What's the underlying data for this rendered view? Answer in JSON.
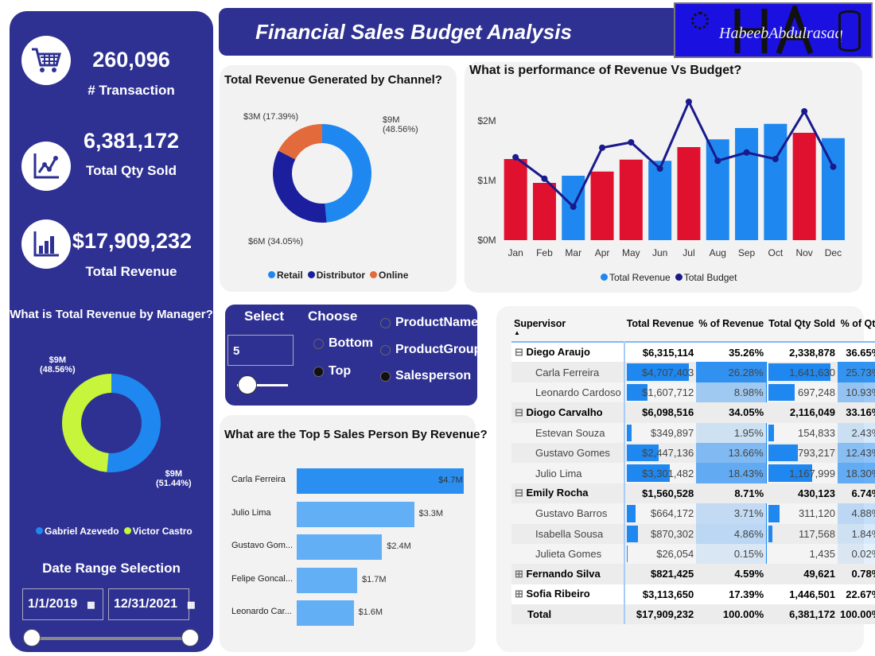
{
  "header": {
    "title": "Financial Sales Budget Analysis",
    "logo_text": "HabeebAbdulrasaq",
    "logo_initials": "HA"
  },
  "sidebar": {
    "kpis": [
      {
        "value": "260,096",
        "label": "# Transaction",
        "icon": "shopping-cart-icon"
      },
      {
        "value": "6,381,172",
        "label": "Total Qty Sold",
        "icon": "line-chart-icon"
      },
      {
        "value": "$17,909,232",
        "label": "Total Revenue",
        "icon": "bar-chart-icon"
      }
    ],
    "manager_chart": {
      "title": "What is Total Revenue by Manager?",
      "slices": [
        {
          "name": "Victor Castro",
          "value": 51.44,
          "label": "$9M",
          "pct": "(51.44%)",
          "color": "#1e88f0"
        },
        {
          "name": "Gabriel Azevedo",
          "value": 48.56,
          "label": "$9M",
          "pct": "(48.56%)",
          "color": "#c6f53b"
        }
      ]
    },
    "date_range": {
      "title": "Date Range Selection",
      "start": "1/1/2019",
      "end": "12/31/2021"
    }
  },
  "channel_chart": {
    "title": "Total Revenue Generated by Channel?",
    "slices": [
      {
        "name": "Retail",
        "value": 48.56,
        "label": "$9M",
        "pct": "(48.56%)",
        "color": "#1e88f0"
      },
      {
        "name": "Distributor",
        "value": 34.05,
        "label": "$6M (34.05%)",
        "color": "#1b1f9e"
      },
      {
        "name": "Online",
        "value": 17.39,
        "label": "$3M (17.39%)",
        "color": "#e26a3b"
      }
    ]
  },
  "chart_data": {
    "type": "bar",
    "title": "What is performance of Revenue Vs Budget?",
    "categories": [
      "Jan",
      "Feb",
      "Mar",
      "Apr",
      "May",
      "Jun",
      "Jul",
      "Aug",
      "Sep",
      "Oct",
      "Nov",
      "Dec"
    ],
    "yticks": [
      "$0M",
      "$1M",
      "$2M"
    ],
    "ylim": [
      0,
      2.4
    ],
    "series": [
      {
        "name": "Total Revenue",
        "type": "bar",
        "values": [
          1.36,
          0.96,
          1.08,
          1.15,
          1.35,
          1.33,
          1.56,
          1.69,
          1.88,
          1.95,
          1.8,
          1.71
        ],
        "color": "#1e88f0",
        "below_budget_color": "#e0102f"
      },
      {
        "name": "Total Budget",
        "type": "line",
        "values": [
          1.39,
          1.03,
          0.56,
          1.55,
          1.64,
          1.2,
          2.32,
          1.33,
          1.47,
          1.36,
          2.16,
          1.23
        ],
        "color": "#1a1a8c"
      }
    ],
    "legend": "bottom"
  },
  "filter": {
    "select_label": "Select",
    "select_value": "5",
    "choose_label": "Choose",
    "choose_options": [
      {
        "label": "Bottom",
        "selected": false
      },
      {
        "label": "Top",
        "selected": true
      }
    ],
    "field_options": [
      {
        "label": "ProductName",
        "selected": false
      },
      {
        "label": "ProductGroup",
        "selected": false
      },
      {
        "label": "Salesperson",
        "selected": true
      }
    ]
  },
  "top5": {
    "title": "What are the Top 5 Sales Person By Revenue?",
    "bars": [
      {
        "name": "Carla Ferreira",
        "value": 4.7,
        "label": "$4.7M"
      },
      {
        "name": "Julio Lima",
        "value": 3.3,
        "label": "$3.3M"
      },
      {
        "name": "Gustavo Gom...",
        "value": 2.4,
        "label": "$2.4M"
      },
      {
        "name": "Felipe Goncal...",
        "value": 1.7,
        "label": "$1.7M"
      },
      {
        "name": "Leonardo Car...",
        "value": 1.6,
        "label": "$1.6M"
      }
    ]
  },
  "table": {
    "headers": [
      "Supervisor",
      "Total Revenue",
      "% of Revenue",
      "Total Qty Sold",
      "% of Qty"
    ],
    "rows": [
      {
        "level": 0,
        "expand": "minus",
        "cells": [
          "Diego Araujo",
          "$6,315,114",
          "35.26%",
          "2,338,878",
          "36.65%"
        ]
      },
      {
        "level": 1,
        "cells": [
          "Carla Ferreira",
          "$4,707,403",
          "26.28%",
          "1,641,630",
          "25.73%"
        ]
      },
      {
        "level": 1,
        "cells": [
          "Leonardo Cardoso",
          "$1,607,712",
          "8.98%",
          "697,248",
          "10.93%"
        ]
      },
      {
        "level": 0,
        "expand": "minus",
        "cells": [
          "Diogo Carvalho",
          "$6,098,516",
          "34.05%",
          "2,116,049",
          "33.16%"
        ]
      },
      {
        "level": 1,
        "cells": [
          "Estevan Souza",
          "$349,897",
          "1.95%",
          "154,833",
          "2.43%"
        ]
      },
      {
        "level": 1,
        "cells": [
          "Gustavo Gomes",
          "$2,447,136",
          "13.66%",
          "793,217",
          "12.43%"
        ]
      },
      {
        "level": 1,
        "cells": [
          "Julio Lima",
          "$3,301,482",
          "18.43%",
          "1,167,999",
          "18.30%"
        ]
      },
      {
        "level": 0,
        "expand": "minus",
        "cells": [
          "Emily Rocha",
          "$1,560,528",
          "8.71%",
          "430,123",
          "6.74%"
        ]
      },
      {
        "level": 1,
        "cells": [
          "Gustavo Barros",
          "$664,172",
          "3.71%",
          "311,120",
          "4.88%"
        ]
      },
      {
        "level": 1,
        "cells": [
          "Isabella Sousa",
          "$870,302",
          "4.86%",
          "117,568",
          "1.84%"
        ]
      },
      {
        "level": 1,
        "cells": [
          "Julieta Gomes",
          "$26,054",
          "0.15%",
          "1,435",
          "0.02%"
        ]
      },
      {
        "level": 0,
        "expand": "plus",
        "cells": [
          "Fernando Silva",
          "$821,425",
          "4.59%",
          "49,621",
          "0.78%"
        ]
      },
      {
        "level": 0,
        "expand": "plus",
        "cells": [
          "Sofia Ribeiro",
          "$3,113,650",
          "17.39%",
          "1,446,501",
          "22.67%"
        ]
      },
      {
        "level": 0,
        "total": true,
        "cells": [
          "Total",
          "$17,909,232",
          "100.00%",
          "6,381,172",
          "100.00%"
        ]
      }
    ]
  }
}
